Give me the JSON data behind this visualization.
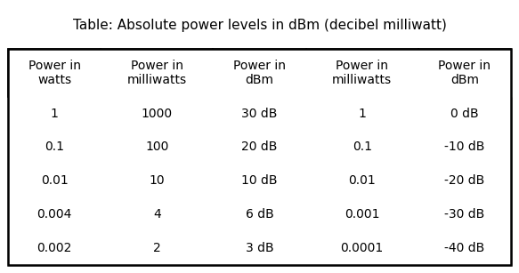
{
  "title": "Table: Absolute power levels in dBm (decibel milliwatt)",
  "col_headers": [
    "Power in\nwatts",
    "Power in\nmilliwatts",
    "Power in\ndBm",
    "Power in\nmilliwatts",
    "Power in\ndBm"
  ],
  "rows": [
    [
      "1",
      "1000",
      "30 dB",
      "1",
      "0 dB"
    ],
    [
      "0.1",
      "100",
      "20 dB",
      "0.1",
      "-10 dB"
    ],
    [
      "0.01",
      "10",
      "10 dB",
      "0.01",
      "-20 dB"
    ],
    [
      "0.004",
      "4",
      "6 dB",
      "0.001",
      "-30 dB"
    ],
    [
      "0.002",
      "2",
      "3 dB",
      "0.0001",
      "-40 dB"
    ]
  ],
  "background_color": "#ffffff",
  "border_color": "#000000",
  "title_fontsize": 11,
  "header_fontsize": 10,
  "cell_fontsize": 10,
  "col_widths": [
    1.0,
    1.2,
    1.0,
    1.2,
    1.0
  ],
  "figsize": [
    5.83,
    3.07
  ],
  "dpi": 100
}
